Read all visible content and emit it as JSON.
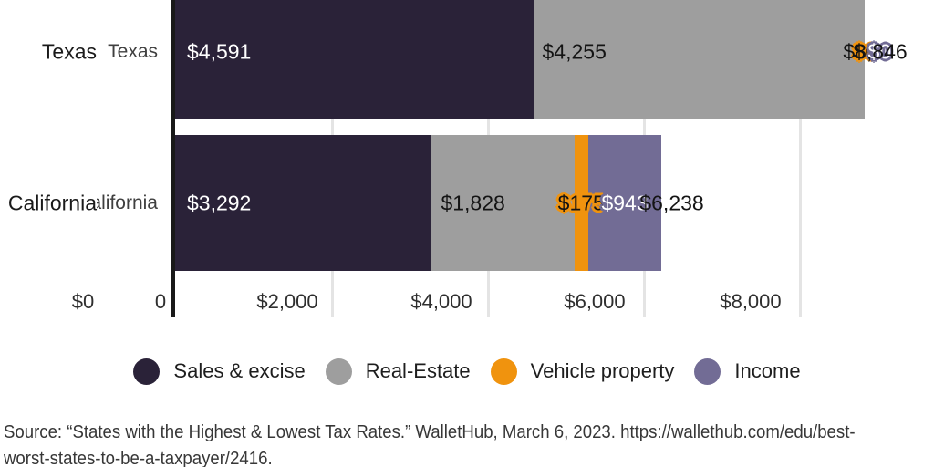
{
  "chart_data": {
    "type": "bar",
    "orientation": "horizontal",
    "stacked": true,
    "categories": [
      "Texas",
      "California"
    ],
    "category_labels_double_printed": true,
    "series": [
      {
        "name": "Sales & excise",
        "color": "#2a2238",
        "values": [
          4591,
          3292
        ]
      },
      {
        "name": "Real-Estate",
        "color": "#9e9e9e",
        "values": [
          4255,
          1828
        ]
      },
      {
        "name": "Vehicle property",
        "color": "#f0930e",
        "values": [
          0,
          175
        ]
      },
      {
        "name": "Income",
        "color": "#726c95",
        "values": [
          0,
          943
        ]
      }
    ],
    "segment_labels": [
      [
        "$4,591",
        "$4,255",
        "$0",
        "$0"
      ],
      [
        "$3,292",
        "$1,828",
        "$175",
        "$943"
      ]
    ],
    "totals": [
      8846,
      6238
    ],
    "total_labels": [
      "$8,846",
      "$6,238"
    ],
    "x_tick_labels": [
      "$0",
      "0",
      "$2,000",
      "$4,000",
      "$6,000",
      "$8,000"
    ],
    "x_tick_values": [
      0,
      0,
      2000,
      4000,
      6000,
      8000
    ],
    "xlim": [
      0,
      9000
    ],
    "grid": true,
    "gridline_color": "#e4e4e4",
    "axis_line_color": "#191919",
    "legend_position": "bottom",
    "background": "#ffffff",
    "segment_label_colors": {
      "on_dark": "#ffffff",
      "on_light": "#141414"
    }
  },
  "source": {
    "lines": [
      "Source: “States with the Highest & Lowest Tax Rates.” WalletHub, March 6, 2023. https://wallethub.com/edu/best-",
      "worst-states-to-be-a-taxpayer/2416."
    ]
  }
}
